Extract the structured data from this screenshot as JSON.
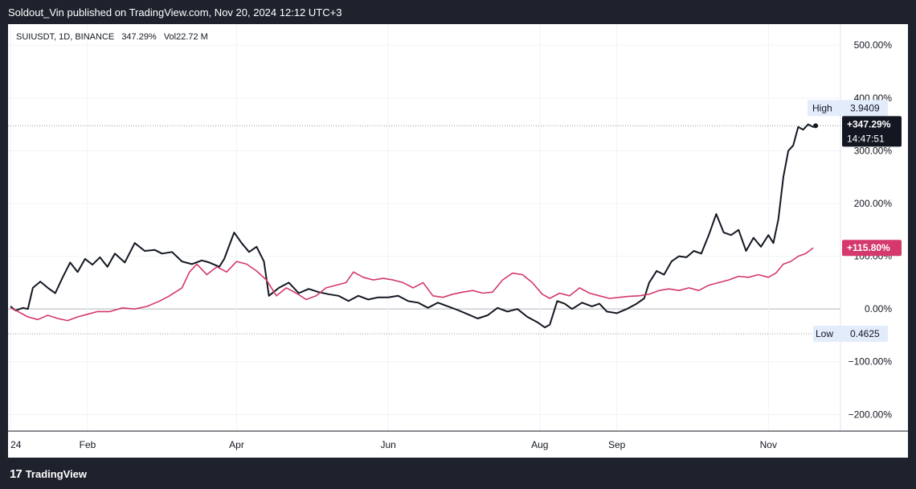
{
  "header": {
    "text": "Soldout_Vin published on TradingView.com, Nov 20, 2024 12:12 UTC+3"
  },
  "legend": {
    "symbol": "SUIUSDT, 1D, BINANCE",
    "change": "347.29%",
    "volume": "Vol22.72 M"
  },
  "footer": {
    "brand": "TradingView",
    "logo_icon": "tradingview-logo-icon"
  },
  "colors": {
    "primary": "#131722",
    "secondary": "#d4386c",
    "background": "#1e222d",
    "grid": "#f0f3fa"
  },
  "chart_data": {
    "type": "line",
    "y_unit": "%",
    "ylim": [
      -230,
      540
    ],
    "xlim": [
      "2023-12-31",
      "2024-11-30"
    ],
    "y_ticks": [
      {
        "value": 500,
        "label": "500.00%"
      },
      {
        "value": 400,
        "label": "400.00%"
      },
      {
        "value": 300,
        "label": "300.00%"
      },
      {
        "value": 200,
        "label": "200.00%"
      },
      {
        "value": 100,
        "label": "100.00%"
      },
      {
        "value": 0,
        "label": "0.00%"
      },
      {
        "value": -100,
        "label": "−100.00%"
      },
      {
        "value": -200,
        "label": "−200.00%"
      }
    ],
    "x_ticks": [
      {
        "date": "2024-01-01",
        "label": "24"
      },
      {
        "date": "2024-02-01",
        "label": "Feb"
      },
      {
        "date": "2024-04-01",
        "label": "Apr"
      },
      {
        "date": "2024-06-01",
        "label": "Jun"
      },
      {
        "date": "2024-08-01",
        "label": "Aug"
      },
      {
        "date": "2024-09-01",
        "label": "Sep"
      },
      {
        "date": "2024-11-01",
        "label": "Nov"
      }
    ],
    "high_line": {
      "value": 347.3,
      "label": "High",
      "price": "3.9409"
    },
    "low_line": {
      "value": -47,
      "label": "Low",
      "price": "0.4625"
    },
    "series": [
      {
        "color": "#131722",
        "last_label": "+347.29%",
        "countdown": "14:47:51",
        "points": [
          [
            "2024-01-01",
            5
          ],
          [
            "2024-01-03",
            -3
          ],
          [
            "2024-01-06",
            2
          ],
          [
            "2024-01-08",
            0
          ],
          [
            "2024-01-10",
            40
          ],
          [
            "2024-01-13",
            52
          ],
          [
            "2024-01-16",
            40
          ],
          [
            "2024-01-19",
            30
          ],
          [
            "2024-01-22",
            60
          ],
          [
            "2024-01-25",
            88
          ],
          [
            "2024-01-28",
            70
          ],
          [
            "2024-01-31",
            95
          ],
          [
            "2024-02-03",
            84
          ],
          [
            "2024-02-06",
            98
          ],
          [
            "2024-02-09",
            80
          ],
          [
            "2024-02-12",
            105
          ],
          [
            "2024-02-16",
            88
          ],
          [
            "2024-02-20",
            125
          ],
          [
            "2024-02-24",
            110
          ],
          [
            "2024-02-28",
            112
          ],
          [
            "2024-03-02",
            105
          ],
          [
            "2024-03-06",
            108
          ],
          [
            "2024-03-10",
            90
          ],
          [
            "2024-03-14",
            85
          ],
          [
            "2024-03-18",
            92
          ],
          [
            "2024-03-21",
            88
          ],
          [
            "2024-03-25",
            80
          ],
          [
            "2024-03-27",
            95
          ],
          [
            "2024-03-29",
            120
          ],
          [
            "2024-03-31",
            145
          ],
          [
            "2024-04-03",
            125
          ],
          [
            "2024-04-06",
            108
          ],
          [
            "2024-04-09",
            118
          ],
          [
            "2024-04-12",
            90
          ],
          [
            "2024-04-14",
            25
          ],
          [
            "2024-04-18",
            40
          ],
          [
            "2024-04-22",
            50
          ],
          [
            "2024-04-26",
            30
          ],
          [
            "2024-04-30",
            38
          ],
          [
            "2024-05-04",
            32
          ],
          [
            "2024-05-08",
            28
          ],
          [
            "2024-05-12",
            25
          ],
          [
            "2024-05-16",
            15
          ],
          [
            "2024-05-20",
            25
          ],
          [
            "2024-05-24",
            18
          ],
          [
            "2024-05-28",
            22
          ],
          [
            "2024-06-01",
            22
          ],
          [
            "2024-06-05",
            25
          ],
          [
            "2024-06-09",
            15
          ],
          [
            "2024-06-13",
            12
          ],
          [
            "2024-06-17",
            2
          ],
          [
            "2024-06-21",
            12
          ],
          [
            "2024-06-25",
            5
          ],
          [
            "2024-06-29",
            -2
          ],
          [
            "2024-07-03",
            -10
          ],
          [
            "2024-07-07",
            -18
          ],
          [
            "2024-07-11",
            -12
          ],
          [
            "2024-07-15",
            2
          ],
          [
            "2024-07-19",
            -5
          ],
          [
            "2024-07-23",
            0
          ],
          [
            "2024-07-27",
            -15
          ],
          [
            "2024-07-31",
            -25
          ],
          [
            "2024-08-03",
            -35
          ],
          [
            "2024-08-05",
            -30
          ],
          [
            "2024-08-08",
            15
          ],
          [
            "2024-08-11",
            10
          ],
          [
            "2024-08-14",
            0
          ],
          [
            "2024-08-18",
            12
          ],
          [
            "2024-08-22",
            5
          ],
          [
            "2024-08-25",
            10
          ],
          [
            "2024-08-28",
            -5
          ],
          [
            "2024-09-01",
            -8
          ],
          [
            "2024-09-05",
            0
          ],
          [
            "2024-09-09",
            10
          ],
          [
            "2024-09-12",
            20
          ],
          [
            "2024-09-14",
            50
          ],
          [
            "2024-09-17",
            72
          ],
          [
            "2024-09-20",
            65
          ],
          [
            "2024-09-23",
            90
          ],
          [
            "2024-09-26",
            100
          ],
          [
            "2024-09-29",
            98
          ],
          [
            "2024-10-02",
            110
          ],
          [
            "2024-10-05",
            105
          ],
          [
            "2024-10-08",
            140
          ],
          [
            "2024-10-11",
            180
          ],
          [
            "2024-10-14",
            145
          ],
          [
            "2024-10-17",
            140
          ],
          [
            "2024-10-20",
            150
          ],
          [
            "2024-10-23",
            110
          ],
          [
            "2024-10-26",
            135
          ],
          [
            "2024-10-29",
            118
          ],
          [
            "2024-11-01",
            140
          ],
          [
            "2024-11-03",
            125
          ],
          [
            "2024-11-05",
            170
          ],
          [
            "2024-11-07",
            250
          ],
          [
            "2024-11-09",
            300
          ],
          [
            "2024-11-11",
            310
          ],
          [
            "2024-11-13",
            345
          ],
          [
            "2024-11-15",
            340
          ],
          [
            "2024-11-17",
            350
          ],
          [
            "2024-11-19",
            345
          ],
          [
            "2024-11-20",
            347.3
          ]
        ]
      },
      {
        "color": "#d4386c",
        "last_label": "+115.80%",
        "points": [
          [
            "2024-01-01",
            2
          ],
          [
            "2024-01-04",
            -5
          ],
          [
            "2024-01-08",
            -15
          ],
          [
            "2024-01-12",
            -20
          ],
          [
            "2024-01-16",
            -12
          ],
          [
            "2024-01-20",
            -18
          ],
          [
            "2024-01-24",
            -22
          ],
          [
            "2024-01-28",
            -15
          ],
          [
            "2024-02-01",
            -10
          ],
          [
            "2024-02-05",
            -5
          ],
          [
            "2024-02-10",
            -5
          ],
          [
            "2024-02-15",
            2
          ],
          [
            "2024-02-20",
            0
          ],
          [
            "2024-02-25",
            5
          ],
          [
            "2024-03-01",
            15
          ],
          [
            "2024-03-05",
            25
          ],
          [
            "2024-03-10",
            40
          ],
          [
            "2024-03-13",
            70
          ],
          [
            "2024-03-16",
            85
          ],
          [
            "2024-03-20",
            65
          ],
          [
            "2024-03-24",
            80
          ],
          [
            "2024-03-28",
            70
          ],
          [
            "2024-04-01",
            90
          ],
          [
            "2024-04-05",
            85
          ],
          [
            "2024-04-09",
            72
          ],
          [
            "2024-04-13",
            55
          ],
          [
            "2024-04-17",
            25
          ],
          [
            "2024-04-21",
            40
          ],
          [
            "2024-04-25",
            30
          ],
          [
            "2024-04-29",
            18
          ],
          [
            "2024-05-03",
            25
          ],
          [
            "2024-05-07",
            40
          ],
          [
            "2024-05-11",
            45
          ],
          [
            "2024-05-15",
            50
          ],
          [
            "2024-05-18",
            70
          ],
          [
            "2024-05-22",
            60
          ],
          [
            "2024-05-26",
            55
          ],
          [
            "2024-05-30",
            58
          ],
          [
            "2024-06-03",
            55
          ],
          [
            "2024-06-07",
            50
          ],
          [
            "2024-06-11",
            40
          ],
          [
            "2024-06-15",
            50
          ],
          [
            "2024-06-19",
            25
          ],
          [
            "2024-06-23",
            22
          ],
          [
            "2024-06-27",
            28
          ],
          [
            "2024-07-01",
            32
          ],
          [
            "2024-07-05",
            35
          ],
          [
            "2024-07-09",
            30
          ],
          [
            "2024-07-13",
            32
          ],
          [
            "2024-07-17",
            55
          ],
          [
            "2024-07-21",
            68
          ],
          [
            "2024-07-25",
            65
          ],
          [
            "2024-07-29",
            50
          ],
          [
            "2024-08-02",
            28
          ],
          [
            "2024-08-05",
            20
          ],
          [
            "2024-08-09",
            30
          ],
          [
            "2024-08-13",
            25
          ],
          [
            "2024-08-17",
            40
          ],
          [
            "2024-08-21",
            30
          ],
          [
            "2024-08-25",
            25
          ],
          [
            "2024-08-29",
            20
          ],
          [
            "2024-09-02",
            22
          ],
          [
            "2024-09-06",
            24
          ],
          [
            "2024-09-10",
            25
          ],
          [
            "2024-09-14",
            28
          ],
          [
            "2024-09-18",
            35
          ],
          [
            "2024-09-22",
            38
          ],
          [
            "2024-09-26",
            35
          ],
          [
            "2024-09-30",
            40
          ],
          [
            "2024-10-04",
            35
          ],
          [
            "2024-10-08",
            45
          ],
          [
            "2024-10-12",
            50
          ],
          [
            "2024-10-16",
            55
          ],
          [
            "2024-10-20",
            62
          ],
          [
            "2024-10-24",
            60
          ],
          [
            "2024-10-28",
            65
          ],
          [
            "2024-11-01",
            60
          ],
          [
            "2024-11-04",
            68
          ],
          [
            "2024-11-07",
            85
          ],
          [
            "2024-11-10",
            90
          ],
          [
            "2024-11-13",
            100
          ],
          [
            "2024-11-16",
            105
          ],
          [
            "2024-11-19",
            115.8
          ]
        ]
      }
    ]
  }
}
